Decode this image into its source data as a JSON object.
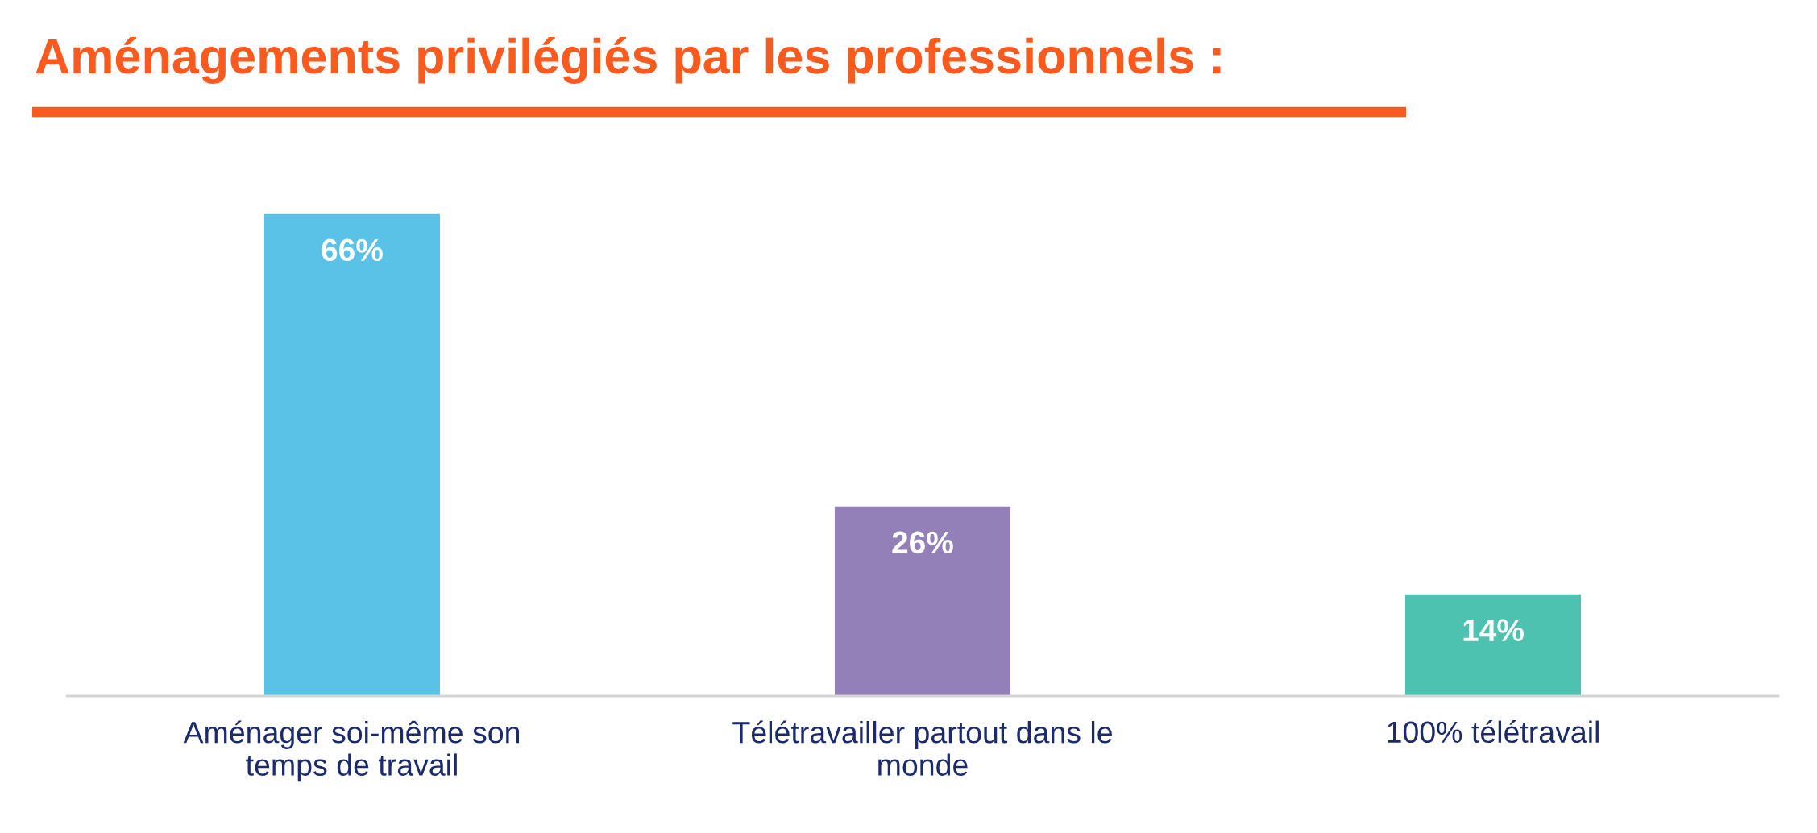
{
  "chart_data": {
    "type": "bar",
    "title": "Aménagements privilégiés par les professionnels :",
    "categories": [
      "Aménager soi-même son\ntemps de travail",
      "Télétravailler partout dans le\nmonde",
      "100% télétravail"
    ],
    "values": [
      66,
      26,
      14
    ],
    "colors": [
      "#5bc2e7",
      "#9380b8",
      "#4dc2b0"
    ],
    "value_labels": [
      "66%",
      "26%",
      "14%"
    ],
    "grid": false,
    "legend": false
  }
}
